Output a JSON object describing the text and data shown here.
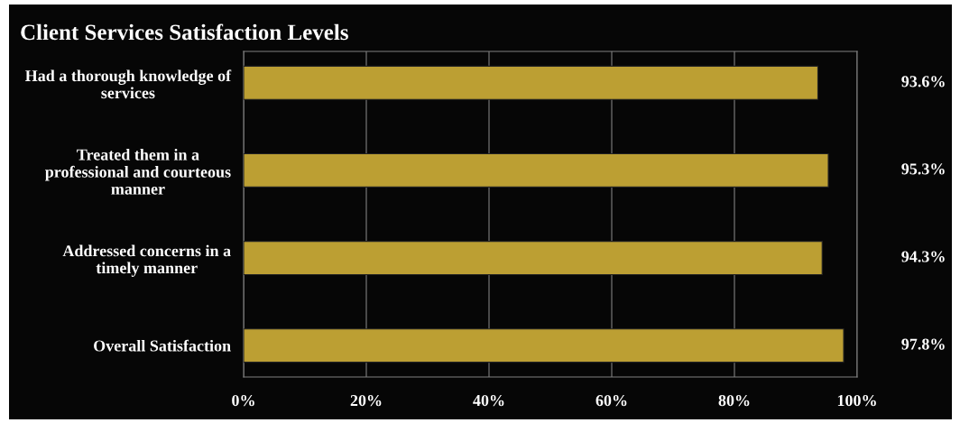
{
  "chart_data": {
    "type": "bar",
    "orientation": "horizontal",
    "title": "Client Services Satisfaction Levels",
    "categories": [
      "Had a thorough knowledge of\nservices",
      "Treated them in a\nprofessional and courteous\nmanner",
      "Addressed concerns in a\ntimely manner",
      "Overall Satisfaction"
    ],
    "values": [
      93.6,
      95.3,
      94.3,
      97.8
    ],
    "color": "#bc9f33",
    "value_labels": [
      "93.6%",
      "95.3%",
      "94.3%",
      "97.8%"
    ],
    "xlim": [
      0,
      100
    ],
    "xticks": [
      {
        "value": 0,
        "label": "0%"
      },
      {
        "value": 20,
        "label": "20%"
      },
      {
        "value": 40,
        "label": "40%"
      },
      {
        "value": 60,
        "label": "60%"
      },
      {
        "value": 80,
        "label": "80%"
      },
      {
        "value": 100,
        "label": "100%"
      }
    ],
    "grid": "x"
  }
}
